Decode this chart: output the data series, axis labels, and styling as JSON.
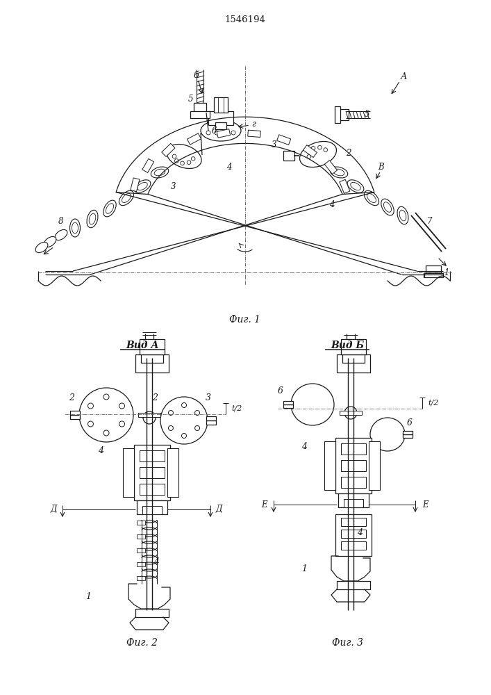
{
  "title": "1546194",
  "bg_color": "#ffffff",
  "line_color": "#1a1a1a",
  "fig1_caption": "Фиг. 1",
  "fig2_caption": "Фиг. 2",
  "fig3_caption": "Фиг. 3",
  "vid_a_label": "Вид А",
  "vid_b_label": "Вид Б"
}
